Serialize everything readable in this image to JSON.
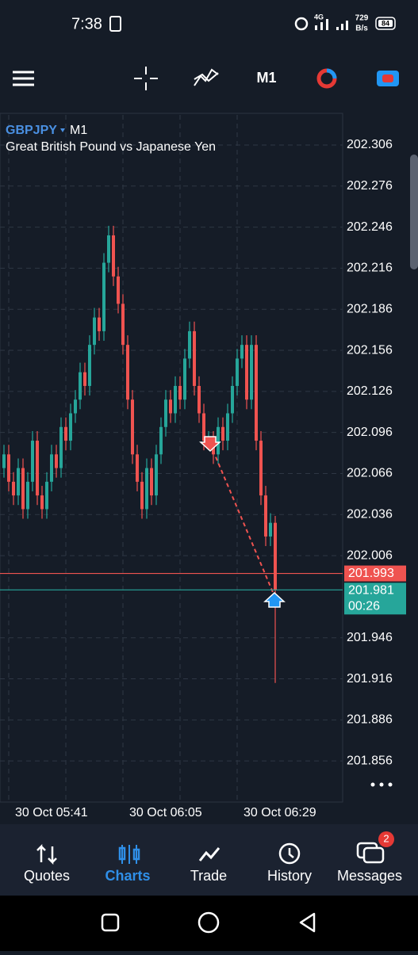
{
  "status_bar": {
    "time": "7:38",
    "network": "4G",
    "speed": "729",
    "speed_unit": "B/s",
    "battery": "84"
  },
  "toolbar": {
    "timeframe": "M1"
  },
  "chart_data": {
    "type": "candlestick",
    "symbol": "GBPJPY",
    "timeframe": "M1",
    "subtitle": "Great British Pound vs Japanese Yen",
    "categories": [
      null,
      "30 Oct 05:41",
      null,
      null,
      null,
      null,
      null,
      null,
      null,
      null,
      null,
      null,
      null,
      null,
      null,
      null,
      null,
      null,
      null,
      null,
      null,
      null,
      null,
      null,
      null,
      "30 Oct 06:05",
      null,
      null,
      null,
      null,
      null,
      null,
      null,
      null,
      null,
      null,
      null,
      null,
      null,
      null,
      null,
      null,
      null,
      null,
      null,
      null,
      null,
      null,
      null,
      "30 Oct 06:29",
      null,
      null,
      null,
      null,
      null,
      null,
      null,
      null
    ],
    "open": [
      202.07,
      202.08,
      202.06,
      202.05,
      202.07,
      202.04,
      202.06,
      202.09,
      202.05,
      202.04,
      202.06,
      202.08,
      202.07,
      202.1,
      202.09,
      202.11,
      202.12,
      202.14,
      202.13,
      202.16,
      202.18,
      202.17,
      202.22,
      202.24,
      202.21,
      202.19,
      202.16,
      202.12,
      202.08,
      202.06,
      202.04,
      202.07,
      202.05,
      202.08,
      202.1,
      202.12,
      202.11,
      202.13,
      202.12,
      202.15,
      202.17,
      202.13,
      202.11,
      202.09,
      202.09,
      202.08,
      202.1,
      202.09,
      202.11,
      202.13,
      202.15,
      202.16,
      202.12,
      202.16,
      202.09,
      202.05,
      202.02,
      202.03
    ],
    "high": [
      202.087,
      202.087,
      202.067,
      202.077,
      202.077,
      202.067,
      202.097,
      202.097,
      202.057,
      202.067,
      202.087,
      202.087,
      202.107,
      202.107,
      202.117,
      202.127,
      202.147,
      202.147,
      202.167,
      202.187,
      202.187,
      202.227,
      202.247,
      202.247,
      202.217,
      202.197,
      202.167,
      202.127,
      202.087,
      202.067,
      202.077,
      202.077,
      202.087,
      202.107,
      202.127,
      202.127,
      202.137,
      202.137,
      202.157,
      202.177,
      202.177,
      202.137,
      202.117,
      202.097,
      202.097,
      202.107,
      202.107,
      202.117,
      202.137,
      202.157,
      202.167,
      202.167,
      202.167,
      202.167,
      202.097,
      202.057,
      202.037,
      202.035
    ],
    "low": [
      202.063,
      202.053,
      202.043,
      202.043,
      202.033,
      202.033,
      202.053,
      202.043,
      202.033,
      202.033,
      202.053,
      202.063,
      202.063,
      202.083,
      202.083,
      202.103,
      202.113,
      202.123,
      202.123,
      202.153,
      202.163,
      202.163,
      202.213,
      202.203,
      202.183,
      202.153,
      202.113,
      202.073,
      202.053,
      202.033,
      202.033,
      202.043,
      202.043,
      202.073,
      202.093,
      202.103,
      202.103,
      202.113,
      202.113,
      202.143,
      202.123,
      202.103,
      202.083,
      202.083,
      202.073,
      202.073,
      202.083,
      202.083,
      202.103,
      202.123,
      202.143,
      202.113,
      202.113,
      202.083,
      202.043,
      202.013,
      202.013,
      201.913
    ],
    "close": [
      202.08,
      202.06,
      202.05,
      202.07,
      202.04,
      202.06,
      202.09,
      202.05,
      202.04,
      202.06,
      202.08,
      202.07,
      202.1,
      202.09,
      202.11,
      202.12,
      202.14,
      202.13,
      202.16,
      202.18,
      202.17,
      202.22,
      202.24,
      202.21,
      202.19,
      202.16,
      202.12,
      202.08,
      202.06,
      202.04,
      202.07,
      202.05,
      202.08,
      202.1,
      202.12,
      202.11,
      202.13,
      202.12,
      202.15,
      202.17,
      202.13,
      202.11,
      202.09,
      202.09,
      202.08,
      202.1,
      202.09,
      202.11,
      202.13,
      202.15,
      202.16,
      202.12,
      202.16,
      202.09,
      202.05,
      202.02,
      202.03,
      201.981
    ],
    "up_color": "#26a69a",
    "down_color": "#ef5350",
    "ylim": [
      201.826,
      202.328
    ],
    "yticks": [
      202.306,
      202.276,
      202.246,
      202.216,
      202.186,
      202.156,
      202.126,
      202.096,
      202.066,
      202.036,
      202.006,
      201.946,
      201.916,
      201.886,
      201.856
    ],
    "grid": true,
    "ask": 201.993,
    "bid": 201.981,
    "countdown": "00:26"
  },
  "nav": {
    "items": [
      "Quotes",
      "Charts",
      "Trade",
      "History",
      "Messages"
    ],
    "active": 1,
    "badge": "2"
  }
}
